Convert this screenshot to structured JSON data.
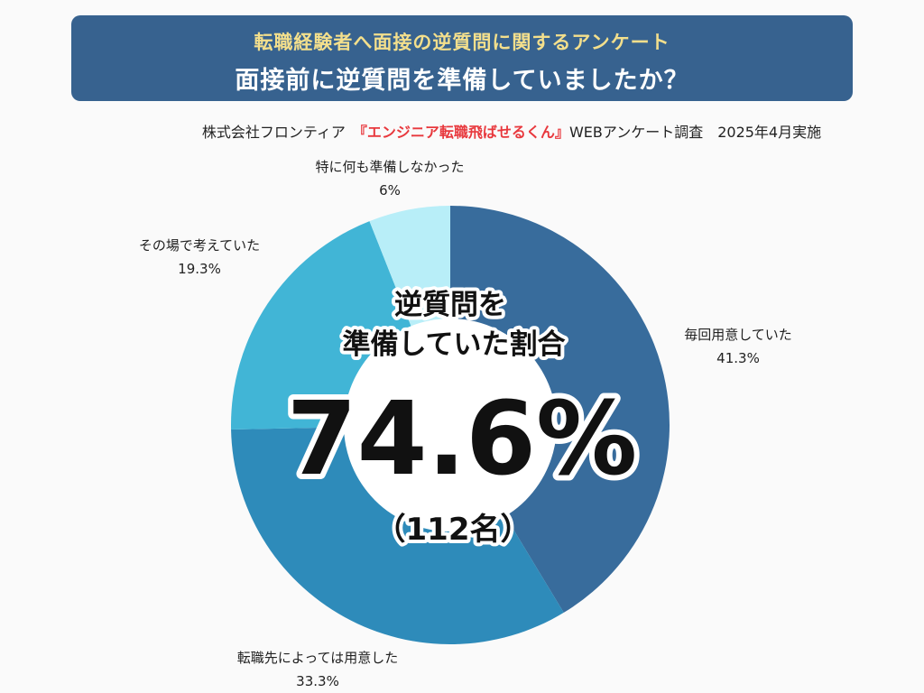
{
  "header": {
    "subtitle": "転職経験者へ面接の逆質問に関するアンケート",
    "title": "面接前に逆質問を準備していましたか？"
  },
  "source": {
    "prefix": "株式会社フロンティア　",
    "highlight": "『エンジニア転職飛ばせるくん』",
    "suffix": "WEBアンケート調査　2025年4月実施"
  },
  "center": {
    "line1": "逆質問を",
    "line2": "準備していた割合",
    "value": "74.6%",
    "count": "（112名）"
  },
  "chart_data": {
    "type": "pie",
    "categories": [
      "毎回用意していた",
      "転職先によっては用意した",
      "その場で考えていた",
      "特に何も準備しなかった"
    ],
    "values": [
      41.3,
      33.3,
      19.3,
      6
    ],
    "value_labels": [
      "41.3%",
      "33.3%",
      "19.3%",
      "6%"
    ],
    "colors": [
      "#386c9c",
      "#2e8bba",
      "#41b5d6",
      "#b8eef8"
    ],
    "start": "12 o'clock",
    "direction": "clockwise",
    "hole": "donut-style inner circle"
  }
}
